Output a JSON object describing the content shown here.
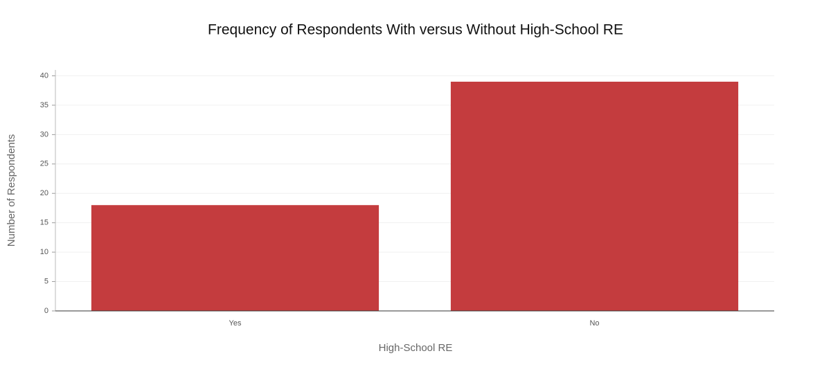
{
  "chart_data": {
    "type": "bar",
    "title": "Frequency of Respondents With versus Without High-School RE",
    "x_label": "High-School RE",
    "y_label": "Number of Respondents",
    "categories": [
      "Yes",
      "No"
    ],
    "values": [
      18,
      39
    ],
    "color": "#c43c3e",
    "ylim": [
      0,
      41
    ],
    "yticks": [
      0,
      5,
      10,
      15,
      20,
      25,
      30,
      35,
      40
    ],
    "grid": true
  }
}
